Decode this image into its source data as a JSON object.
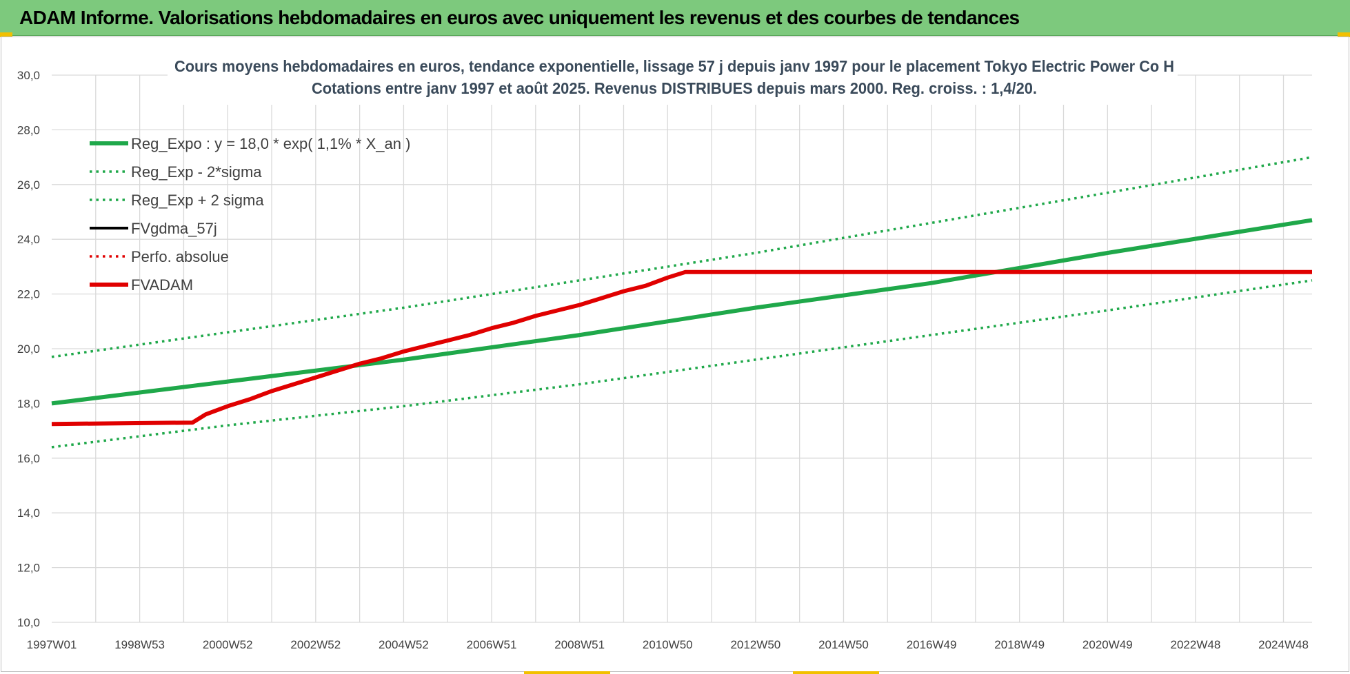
{
  "banner": {
    "title": "ADAM Informe. Valorisations hebdomadaires en euros avec uniquement les revenus et des courbes de tendances"
  },
  "chart_data": {
    "type": "line",
    "title_lines": [
      "Cours moyens hebdomadaires en euros, tendance exponentielle, lissage 57 j depuis janv 1997 pour le placement Tokyo Electric Power Co H",
      "Cotations entre janv 1997 et août 2025.  Revenus DISTRIBUES depuis mars 2000. Reg. croiss. : 1,4/20."
    ],
    "xlabel": "",
    "ylabel": "",
    "ylim": [
      10,
      30
    ],
    "xlim": [
      1997.0,
      2025.65
    ],
    "y_ticks": [
      "10,0",
      "12,0",
      "14,0",
      "16,0",
      "18,0",
      "20,0",
      "22,0",
      "24,0",
      "26,0",
      "28,0",
      "30,0"
    ],
    "x_tick_labels": [
      {
        "label": "1997W01",
        "t": 1997.0
      },
      {
        "label": "1998W53",
        "t": 1999.0
      },
      {
        "label": "2000W52",
        "t": 2001.0
      },
      {
        "label": "2002W52",
        "t": 2003.0
      },
      {
        "label": "2004W52",
        "t": 2005.0
      },
      {
        "label": "2006W51",
        "t": 2007.0
      },
      {
        "label": "2008W51",
        "t": 2009.0
      },
      {
        "label": "2010W50",
        "t": 2011.0
      },
      {
        "label": "2012W50",
        "t": 2013.0
      },
      {
        "label": "2014W50",
        "t": 2015.0
      },
      {
        "label": "2016W49",
        "t": 2017.0
      },
      {
        "label": "2018W49",
        "t": 2019.0
      },
      {
        "label": "2020W49",
        "t": 2021.0
      },
      {
        "label": "2022W48",
        "t": 2023.0
      },
      {
        "label": "2024W48",
        "t": 2025.0
      }
    ],
    "grid": true,
    "legend_position": "top-left",
    "series": [
      {
        "name": "Reg_Expo : y = 18,0 * exp( 1,1% *  X_an )",
        "color": "#1fa84a",
        "style": "solid-thick",
        "x": [
          1997.0,
          2001.0,
          2005.0,
          2009.0,
          2013.0,
          2017.0,
          2021.0,
          2025.65
        ],
        "y": [
          18.0,
          18.8,
          19.6,
          20.5,
          21.5,
          22.4,
          23.5,
          24.7
        ]
      },
      {
        "name": "Reg_Exp - 2*sigma",
        "color": "#1fa84a",
        "style": "dotted",
        "x": [
          1997.0,
          2001.0,
          2005.0,
          2009.0,
          2013.0,
          2017.0,
          2021.0,
          2025.65
        ],
        "y": [
          16.4,
          17.2,
          17.9,
          18.7,
          19.6,
          20.5,
          21.4,
          22.5
        ]
      },
      {
        "name": "Reg_Exp + 2 sigma",
        "color": "#1fa84a",
        "style": "dotted",
        "x": [
          1997.0,
          2001.0,
          2005.0,
          2009.0,
          2013.0,
          2017.0,
          2021.0,
          2025.65
        ],
        "y": [
          19.7,
          20.6,
          21.5,
          22.5,
          23.5,
          24.6,
          25.7,
          27.0
        ]
      },
      {
        "name": "FVgdma_57j",
        "color": "#000000",
        "style": "solid",
        "x": [
          1997.0,
          2000.2,
          2000.5,
          2001.0,
          2001.5,
          2002.0,
          2002.5,
          2003.0,
          2003.5,
          2004.0,
          2004.5,
          2005.0,
          2005.5,
          2006.0,
          2006.5,
          2007.0,
          2007.5,
          2008.0,
          2008.5,
          2009.0,
          2009.5,
          2010.0,
          2010.5,
          2011.0,
          2011.4,
          2025.65
        ],
        "y": [
          17.25,
          17.3,
          17.6,
          17.9,
          18.15,
          18.45,
          18.7,
          18.95,
          19.2,
          19.45,
          19.65,
          19.9,
          20.1,
          20.3,
          20.5,
          20.75,
          20.95,
          21.2,
          21.4,
          21.6,
          21.85,
          22.1,
          22.3,
          22.6,
          22.8,
          22.8
        ]
      },
      {
        "name": "Perfo. absolue",
        "color": "#e00000",
        "style": "dotted",
        "x": [
          1997.0,
          2000.2,
          2000.5,
          2001.0,
          2001.5,
          2002.0,
          2002.5,
          2003.0,
          2003.5,
          2004.0,
          2004.5,
          2005.0,
          2005.5,
          2006.0,
          2006.5,
          2007.0,
          2007.5,
          2008.0,
          2008.5,
          2009.0,
          2009.5,
          2010.0,
          2010.5,
          2011.0,
          2011.4,
          2025.65
        ],
        "y": [
          17.25,
          17.3,
          17.6,
          17.9,
          18.15,
          18.45,
          18.7,
          18.95,
          19.2,
          19.45,
          19.65,
          19.9,
          20.1,
          20.3,
          20.5,
          20.75,
          20.95,
          21.2,
          21.4,
          21.6,
          21.85,
          22.1,
          22.3,
          22.6,
          22.8,
          22.8
        ]
      },
      {
        "name": "FVADAM",
        "color": "#e00000",
        "style": "solid-thick",
        "x": [
          1997.0,
          2000.2,
          2000.5,
          2001.0,
          2001.5,
          2002.0,
          2002.5,
          2003.0,
          2003.5,
          2004.0,
          2004.5,
          2005.0,
          2005.5,
          2006.0,
          2006.5,
          2007.0,
          2007.5,
          2008.0,
          2008.5,
          2009.0,
          2009.5,
          2010.0,
          2010.5,
          2011.0,
          2011.4,
          2025.65
        ],
        "y": [
          17.25,
          17.3,
          17.6,
          17.9,
          18.15,
          18.45,
          18.7,
          18.95,
          19.2,
          19.45,
          19.65,
          19.9,
          20.1,
          20.3,
          20.5,
          20.75,
          20.95,
          21.2,
          21.4,
          21.6,
          21.85,
          22.1,
          22.3,
          22.6,
          22.8,
          22.8
        ]
      }
    ]
  }
}
